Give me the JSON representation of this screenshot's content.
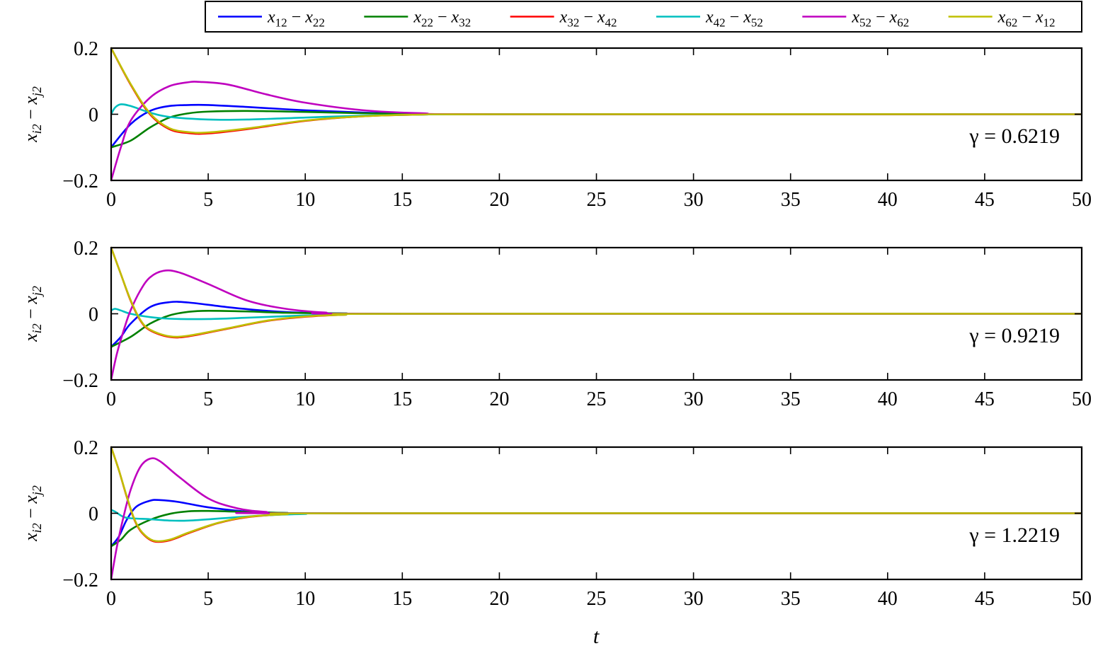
{
  "chart_data": [
    {
      "type": "line",
      "panel": 1,
      "annotation": "γ = 0.6219",
      "xlim": [
        0,
        50
      ],
      "ylim": [
        -0.2,
        0.2
      ],
      "xticks": [
        0,
        5,
        10,
        15,
        20,
        25,
        30,
        35,
        40,
        45,
        50
      ],
      "yticks": [
        -0.2,
        0,
        0.2
      ],
      "ylabel": "x_i2 − x_j2",
      "series": [
        {
          "name": "x12 − x22",
          "color": "#0000ff",
          "x": [
            0,
            1,
            2,
            3,
            4,
            5,
            7,
            10,
            13,
            16,
            20,
            50
          ],
          "y": [
            -0.1,
            -0.03,
            0.01,
            0.025,
            0.028,
            0.028,
            0.022,
            0.012,
            0.005,
            0.001,
            0,
            0
          ]
        },
        {
          "name": "x22 − x32",
          "color": "#008000",
          "x": [
            0,
            1,
            2,
            3,
            4,
            5,
            7,
            10,
            13,
            16,
            20,
            50
          ],
          "y": [
            -0.1,
            -0.08,
            -0.04,
            -0.01,
            0.003,
            0.008,
            0.01,
            0.007,
            0.003,
            0.001,
            0,
            0
          ]
        },
        {
          "name": "x32 − x42",
          "color": "#ff0000",
          "x": [
            0,
            1,
            2,
            3,
            4,
            5,
            7,
            10,
            13,
            16,
            20,
            50
          ],
          "y": [
            0.2,
            0.09,
            0.0,
            -0.045,
            -0.057,
            -0.058,
            -0.045,
            -0.02,
            -0.006,
            -0.001,
            0,
            0
          ]
        },
        {
          "name": "x42 − x52",
          "color": "#00bfbf",
          "x": [
            0,
            0.2,
            0.5,
            1,
            2,
            3,
            5,
            7,
            10,
            13,
            16,
            20,
            50
          ],
          "y": [
            0.0,
            0.02,
            0.03,
            0.025,
            0.005,
            -0.008,
            -0.016,
            -0.016,
            -0.01,
            -0.004,
            -0.001,
            0,
            0
          ]
        },
        {
          "name": "x52 − x62",
          "color": "#bf00bf",
          "x": [
            0,
            0.5,
            1,
            2,
            3,
            4,
            4.5,
            6,
            8,
            10,
            13,
            16,
            20,
            50
          ],
          "y": [
            -0.2,
            -0.1,
            -0.02,
            0.05,
            0.085,
            0.097,
            0.098,
            0.09,
            0.06,
            0.035,
            0.012,
            0.003,
            0,
            0
          ]
        },
        {
          "name": "x62 − x12",
          "color": "#bfbf00",
          "x": [
            0,
            1,
            2,
            3,
            4,
            5,
            7,
            10,
            13,
            16,
            20,
            50
          ],
          "y": [
            0.2,
            0.092,
            0.003,
            -0.042,
            -0.054,
            -0.055,
            -0.043,
            -0.019,
            -0.006,
            -0.001,
            0,
            0
          ]
        }
      ]
    },
    {
      "type": "line",
      "panel": 2,
      "annotation": "γ = 0.9219",
      "xlim": [
        0,
        50
      ],
      "ylim": [
        -0.2,
        0.2
      ],
      "xticks": [
        0,
        5,
        10,
        15,
        20,
        25,
        30,
        35,
        40,
        45,
        50
      ],
      "yticks": [
        -0.2,
        0,
        0.2
      ],
      "ylabel": "x_i2 − x_j2",
      "series": [
        {
          "name": "x12 − x22",
          "color": "#0000ff",
          "x": [
            0,
            0.5,
            1,
            2,
            3,
            4,
            6,
            8,
            10,
            12,
            15,
            50
          ],
          "y": [
            -0.1,
            -0.07,
            -0.03,
            0.02,
            0.035,
            0.034,
            0.02,
            0.009,
            0.003,
            0.001,
            0,
            0
          ]
        },
        {
          "name": "x22 − x32",
          "color": "#008000",
          "x": [
            0,
            1,
            2,
            3,
            4,
            5,
            7,
            9,
            12,
            15,
            50
          ],
          "y": [
            -0.1,
            -0.07,
            -0.03,
            -0.005,
            0.006,
            0.009,
            0.007,
            0.003,
            0.001,
            0,
            0
          ]
        },
        {
          "name": "x32 − x42",
          "color": "#ff0000",
          "x": [
            0,
            0.5,
            1,
            1.5,
            2,
            3,
            4,
            6,
            8,
            10,
            12,
            15,
            50
          ],
          "y": [
            0.2,
            0.12,
            0.04,
            -0.02,
            -0.05,
            -0.07,
            -0.068,
            -0.045,
            -0.022,
            -0.009,
            -0.003,
            0,
            0
          ]
        },
        {
          "name": "x42 − x52",
          "color": "#00bfbf",
          "x": [
            0,
            0.2,
            0.5,
            1,
            2,
            3,
            5,
            7,
            10,
            12,
            15,
            50
          ],
          "y": [
            0.01,
            0.015,
            0.01,
            0.0,
            -0.01,
            -0.015,
            -0.016,
            -0.012,
            -0.005,
            -0.002,
            0,
            0
          ]
        },
        {
          "name": "x52 − x62",
          "color": "#bf00bf",
          "x": [
            0,
            0.3,
            0.7,
            1,
            1.5,
            2,
            2.7,
            3.5,
            5,
            7,
            9,
            11,
            14,
            50
          ],
          "y": [
            -0.2,
            -0.12,
            -0.04,
            0.01,
            0.07,
            0.11,
            0.13,
            0.125,
            0.09,
            0.04,
            0.015,
            0.004,
            0,
            0
          ]
        },
        {
          "name": "x62 − x12",
          "color": "#bfbf00",
          "x": [
            0,
            0.5,
            1,
            1.5,
            2,
            3,
            4,
            6,
            8,
            10,
            12,
            15,
            50
          ],
          "y": [
            0.2,
            0.12,
            0.042,
            -0.018,
            -0.048,
            -0.068,
            -0.066,
            -0.044,
            -0.021,
            -0.008,
            -0.003,
            0,
            0
          ]
        }
      ]
    },
    {
      "type": "line",
      "panel": 3,
      "annotation": "γ = 1.2219",
      "xlim": [
        0,
        50
      ],
      "ylim": [
        -0.2,
        0.2
      ],
      "xticks": [
        0,
        5,
        10,
        15,
        20,
        25,
        30,
        35,
        40,
        45,
        50
      ],
      "yticks": [
        -0.2,
        0,
        0.2
      ],
      "ylabel": "x_i2 − x_j2",
      "series": [
        {
          "name": "x12 − x22",
          "color": "#0000ff",
          "x": [
            0,
            0.4,
            0.8,
            1.3,
            2,
            2.5,
            3.5,
            5,
            7,
            9,
            12,
            50
          ],
          "y": [
            -0.1,
            -0.07,
            -0.02,
            0.02,
            0.038,
            0.04,
            0.034,
            0.018,
            0.005,
            0.001,
            0,
            0
          ]
        },
        {
          "name": "x22 − x32",
          "color": "#008000",
          "x": [
            0,
            0.5,
            1,
            2,
            3,
            4,
            5,
            7,
            9,
            12,
            50
          ],
          "y": [
            -0.1,
            -0.08,
            -0.05,
            -0.02,
            -0.002,
            0.006,
            0.007,
            0.004,
            0.001,
            0,
            0
          ]
        },
        {
          "name": "x32 − x42",
          "color": "#ff0000",
          "x": [
            0,
            0.4,
            0.8,
            1.2,
            1.6,
            2.2,
            3,
            4,
            5.5,
            7,
            9,
            12,
            50
          ],
          "y": [
            0.2,
            0.13,
            0.05,
            -0.02,
            -0.06,
            -0.085,
            -0.082,
            -0.06,
            -0.03,
            -0.012,
            -0.003,
            0,
            0
          ]
        },
        {
          "name": "x42 − x52",
          "color": "#00bfbf",
          "x": [
            0,
            0.2,
            0.6,
            1,
            2,
            3,
            4,
            6,
            8,
            10,
            12,
            50
          ],
          "y": [
            0.01,
            0.005,
            -0.01,
            -0.015,
            -0.018,
            -0.022,
            -0.022,
            -0.014,
            -0.006,
            -0.002,
            0,
            0
          ]
        },
        {
          "name": "x52 − x62",
          "color": "#bf00bf",
          "x": [
            0,
            0.3,
            0.6,
            1,
            1.5,
            2,
            2.5,
            3.5,
            5,
            6.5,
            8,
            10,
            50
          ],
          "y": [
            -0.2,
            -0.1,
            -0.02,
            0.07,
            0.14,
            0.165,
            0.158,
            0.11,
            0.045,
            0.015,
            0.004,
            0,
            0
          ]
        },
        {
          "name": "x62 − x12",
          "color": "#bfbf00",
          "x": [
            0,
            0.4,
            0.8,
            1.2,
            1.6,
            2.2,
            3,
            4,
            5.5,
            7,
            9,
            12,
            50
          ],
          "y": [
            0.2,
            0.13,
            0.052,
            -0.018,
            -0.058,
            -0.083,
            -0.08,
            -0.058,
            -0.029,
            -0.011,
            -0.003,
            0,
            0
          ]
        }
      ]
    }
  ],
  "legend": {
    "placement": "top-right",
    "entries": [
      {
        "a": "x",
        "as": "12",
        "b": "x",
        "bs": "22",
        "color": "#0000ff"
      },
      {
        "a": "x",
        "as": "22",
        "b": "x",
        "bs": "32",
        "color": "#008000"
      },
      {
        "a": "x",
        "as": "32",
        "b": "x",
        "bs": "42",
        "color": "#ff0000"
      },
      {
        "a": "x",
        "as": "42",
        "b": "x",
        "bs": "52",
        "color": "#00bfbf"
      },
      {
        "a": "x",
        "as": "52",
        "b": "x",
        "bs": "62",
        "color": "#bf00bf"
      },
      {
        "a": "x",
        "as": "62",
        "b": "x",
        "bs": "12",
        "color": "#bfbf00"
      }
    ]
  },
  "ylabel_parts": {
    "a": "x",
    "as": "i2",
    "minus": "−",
    "b": "x",
    "bs": "j2"
  },
  "xlabel": "t"
}
